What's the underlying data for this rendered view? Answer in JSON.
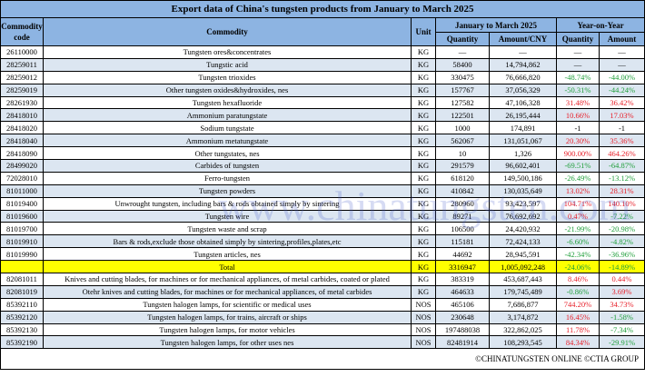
{
  "title": "Export data of China's tungsten products from January to March 2025",
  "headers": {
    "code": "Commodity code",
    "commodity": "Commodity",
    "unit": "Unit",
    "period": "January to March 2025",
    "yoy": "Year-on-Year",
    "quantity": "Quantity",
    "amount_cny": "Amount/CNY",
    "yoy_quantity": "Quantity",
    "yoy_amount": "Amount"
  },
  "rows": [
    {
      "code": "26110000",
      "commodity": "Tungsten ores&concentrates",
      "unit": "KG",
      "quantity": "—",
      "amount": "—",
      "yoy_q": "—",
      "yoy_a": "—"
    },
    {
      "code": "28259011",
      "commodity": "Tungstic acid",
      "unit": "KG",
      "quantity": "58400",
      "amount": "14,794,862",
      "yoy_q": "—",
      "yoy_a": "—"
    },
    {
      "code": "28259012",
      "commodity": "Tungsten trioxides",
      "unit": "KG",
      "quantity": "330475",
      "amount": "76,666,820",
      "yoy_q": "-48.74%",
      "yoy_a": "-44.00%"
    },
    {
      "code": "28259019",
      "commodity": "Other tungsten oxides&hydroxides, nes",
      "unit": "KG",
      "quantity": "157767",
      "amount": "37,056,329",
      "yoy_q": "-50.31%",
      "yoy_a": "-44.24%"
    },
    {
      "code": "28261930",
      "commodity": "Tungsten hexafluoride",
      "unit": "KG",
      "quantity": "127582",
      "amount": "47,106,328",
      "yoy_q": "31.48%",
      "yoy_a": "36.42%"
    },
    {
      "code": "28418010",
      "commodity": "Ammonium paratungstate",
      "unit": "KG",
      "quantity": "122501",
      "amount": "26,195,444",
      "yoy_q": "10.66%",
      "yoy_a": "17.03%"
    },
    {
      "code": "28418020",
      "commodity": "Sodium tungstate",
      "unit": "KG",
      "quantity": "1000",
      "amount": "174,891",
      "yoy_q": "-1",
      "yoy_a": "-1"
    },
    {
      "code": "28418040",
      "commodity": "Ammonium metatungstate",
      "unit": "KG",
      "quantity": "562067",
      "amount": "131,051,067",
      "yoy_q": "20.30%",
      "yoy_a": "35.36%"
    },
    {
      "code": "28418090",
      "commodity": "Other tungstates, nes",
      "unit": "KG",
      "quantity": "10",
      "amount": "1,326",
      "yoy_q": "900.00%",
      "yoy_a": "464.26%"
    },
    {
      "code": "28499020",
      "commodity": "Carbides of tungsten",
      "unit": "KG",
      "quantity": "291579",
      "amount": "96,602,401",
      "yoy_q": "-69.51%",
      "yoy_a": "-64.87%"
    },
    {
      "code": "72028010",
      "commodity": "Ferro-tungsten",
      "unit": "KG",
      "quantity": "618120",
      "amount": "149,500,186",
      "yoy_q": "-26.49%",
      "yoy_a": "-13.12%"
    },
    {
      "code": "81011000",
      "commodity": "Tungsten powders",
      "unit": "KG",
      "quantity": "410842",
      "amount": "130,035,649",
      "yoy_q": "13.02%",
      "yoy_a": "28.31%"
    },
    {
      "code": "81019400",
      "commodity": "Unwrought tungsten, including bars & rods obtained simply by sintering",
      "unit": "KG",
      "quantity": "280960",
      "amount": "93,423,597",
      "yoy_q": "104.71%",
      "yoy_a": "140.10%"
    },
    {
      "code": "81019600",
      "commodity": "Tungsten wire",
      "unit": "KG",
      "quantity": "89271",
      "amount": "76,692,692",
      "yoy_q": "0.47%",
      "yoy_a": "-7.22%"
    },
    {
      "code": "81019700",
      "commodity": "Tungsten waste and scrap",
      "unit": "KG",
      "quantity": "106500",
      "amount": "24,420,932",
      "yoy_q": "-21.99%",
      "yoy_a": "-20.98%"
    },
    {
      "code": "81019910",
      "commodity": "Bars & rods,exclude those obtained simply by sintering,profiles,plates,etc",
      "unit": "KG",
      "quantity": "115181",
      "amount": "72,424,133",
      "yoy_q": "-6.60%",
      "yoy_a": "-4.82%"
    },
    {
      "code": "81019990",
      "commodity": "Tungsten articles, nes",
      "unit": "KG",
      "quantity": "44692",
      "amount": "28,945,591",
      "yoy_q": "-42.34%",
      "yoy_a": "-36.96%"
    },
    {
      "code": "",
      "commodity": "Total",
      "unit": "KG",
      "quantity": "3316947",
      "amount": "1,005,092,248",
      "yoy_q": "-24.06%",
      "yoy_a": "-14.89%",
      "total": true
    },
    {
      "code": "82081011",
      "commodity": "Knives and cutting blades, for machines or for mechanical appliances, of metal carbides, coated or plated",
      "unit": "KG",
      "quantity": "383319",
      "amount": "453,687,443",
      "yoy_q": "8.46%",
      "yoy_a": "0.44%"
    },
    {
      "code": "82081019",
      "commodity": "Otehr knives and cutting blades, for machines or for mechanical appliances, of metal carbides",
      "unit": "KG",
      "quantity": "464633",
      "amount": "179,745,489",
      "yoy_q": "-0.86%",
      "yoy_a": "3.69%"
    },
    {
      "code": "85392110",
      "commodity": "Tungsten halogen lamps, for scientific or medical uses",
      "unit": "NOS",
      "quantity": "465106",
      "amount": "7,686,877",
      "yoy_q": "744.20%",
      "yoy_a": "34.73%"
    },
    {
      "code": "85392120",
      "commodity": "Tungsten halogen lamps, for trains, aircraft or ships",
      "unit": "NOS",
      "quantity": "230648",
      "amount": "3,174,872",
      "yoy_q": "16.45%",
      "yoy_a": "-1.58%"
    },
    {
      "code": "85392130",
      "commodity": "Tungsten halogen lamps, for motor vehicles",
      "unit": "NOS",
      "quantity": "197488038",
      "amount": "322,862,025",
      "yoy_q": "11.78%",
      "yoy_a": "-7.34%"
    },
    {
      "code": "85392190",
      "commodity": "Tungsten halogen lamps, for other uses nes",
      "unit": "NOS",
      "quantity": "82481914",
      "amount": "108,293,545",
      "yoy_q": "84.34%",
      "yoy_a": "-29.91%"
    }
  ],
  "footer": "©CHINATUNGSTEN ONLINE  ©CTIA GROUP",
  "watermark": "www.chinatungsten.com",
  "colors": {
    "header": "#8db4e2",
    "stripe": "#dce6f1",
    "total": "#ffff00",
    "positive": "#e8202a",
    "negative": "#1f9e3a"
  }
}
